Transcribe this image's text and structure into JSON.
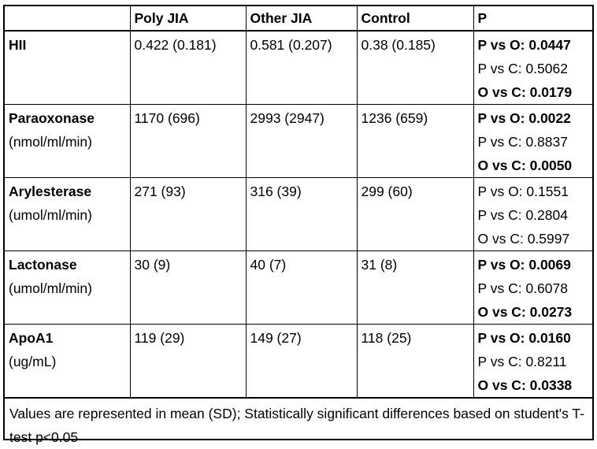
{
  "table": {
    "headers": [
      "",
      "Poly JIA",
      "Other JIA",
      "Control",
      "P"
    ],
    "rows": [
      {
        "label": "HII",
        "unit": "",
        "poly": "0.422 (0.181)",
        "other": "0.581 (0.207)",
        "control": "0.38 (0.185)",
        "p": [
          {
            "text": "P vs O: 0.0447",
            "significant": true
          },
          {
            "text": "P vs C: 0.5062",
            "significant": false
          },
          {
            "text": "O vs C: 0.0179",
            "significant": true
          }
        ]
      },
      {
        "label": "Paraoxonase",
        "unit": "(nmol/ml/min)",
        "poly": "1170 (696)",
        "other": "2993 (2947)",
        "control": "1236 (659)",
        "p": [
          {
            "text": "P vs O: 0.0022",
            "significant": true
          },
          {
            "text": "P vs C: 0.8837",
            "significant": false
          },
          {
            "text": "O vs C: 0.0050",
            "significant": true
          }
        ]
      },
      {
        "label": "Arylesterase",
        "unit": "(umol/ml/min)",
        "poly": "271 (93)",
        "other": "316 (39)",
        "control": "299 (60)",
        "p": [
          {
            "text": "P vs O: 0.1551",
            "significant": false
          },
          {
            "text": "P vs C: 0.2804",
            "significant": false
          },
          {
            "text": "O vs C: 0.5997",
            "significant": false
          }
        ]
      },
      {
        "label": "Lactonase",
        "unit": "(umol/ml/min)",
        "poly": "30 (9)",
        "other": "40 (7)",
        "control": "31 (8)",
        "p": [
          {
            "text": "P vs O: 0.0069",
            "significant": true
          },
          {
            "text": "P vs C: 0.6078",
            "significant": false
          },
          {
            "text": "O vs C: 0.0273",
            "significant": true
          }
        ]
      },
      {
        "label": "ApoA1",
        "unit": "(ug/mL)",
        "poly": "119 (29)",
        "other": "149 (27)",
        "control": "118 (25)",
        "p": [
          {
            "text": "P vs O: 0.0160",
            "significant": true
          },
          {
            "text": "P vs C: 0.8211",
            "significant": false
          },
          {
            "text": "O vs C: 0.0338",
            "significant": true
          }
        ]
      }
    ],
    "footnote": "Values are represented in mean (SD); Statistically significant differences based on student's T-test p<0.05"
  }
}
